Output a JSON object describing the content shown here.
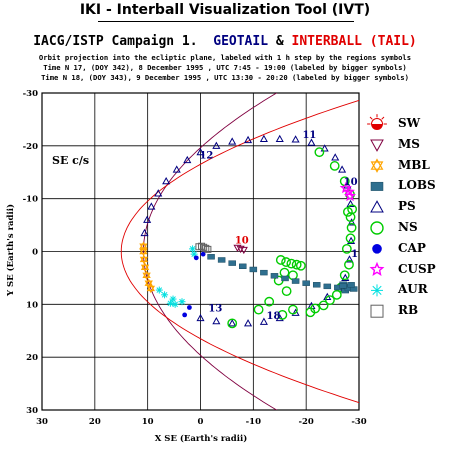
{
  "header": {
    "app_title": "IKI - Interball Visualization Tool (IVT)",
    "campaign_prefix": "IACG/ISTP Campaign 1.",
    "spacecraft_1": "GEOTAIL",
    "amp": "&",
    "spacecraft_2": "INTERBALL (TAIL)",
    "line1": "Orbit projection into the ecliptic plane, labeled with 1 h step by the regions symbols",
    "line2": "Time N 17, (DOY 342), 8 December 1995 , UTC 7:45 - 19:00 (labeled by bigger symbols)",
    "line3": "Time N 18, (DOY 343), 9 December 1995 , UTC 13:30 - 20:20 (labeled by bigger symbols)"
  },
  "colors": {
    "geotail": "#000080",
    "interball": "#e00000",
    "magnetopause": "#800040",
    "bow_shock": "#e00000",
    "SW": "#e00000",
    "MS": "#800040",
    "MBL": "#ffa500",
    "LOBS": "#2f6f8f",
    "PS": "#000080",
    "NS": "#00cc00",
    "CAP": "#0000e0",
    "CUSP": "#ff00ff",
    "AUR": "#00e0e0",
    "RB": "#606060"
  },
  "chart_data": {
    "type": "scatter",
    "xlabel": "X SE (Earth's radii)",
    "ylabel": "Y SE (Earth's radii)",
    "frame_label": "SE c/s",
    "xlim": [
      30,
      -30
    ],
    "ylim": [
      -30,
      30
    ],
    "x_ticks": [
      "30",
      "20",
      "10",
      "0",
      "-10",
      "-20",
      "-30"
    ],
    "y_ticks": [
      "-30",
      "-20",
      "-10",
      "0",
      "10",
      "20",
      "30"
    ],
    "grid": true,
    "legend": [
      {
        "key": "SW",
        "label": "SW"
      },
      {
        "key": "MS",
        "label": "MS"
      },
      {
        "key": "MBL",
        "label": "MBL"
      },
      {
        "key": "LOBS",
        "label": "LOBS"
      },
      {
        "key": "PS",
        "label": "PS"
      },
      {
        "key": "NS",
        "label": "NS"
      },
      {
        "key": "CAP",
        "label": "CAP"
      },
      {
        "key": "CUSP",
        "label": "CUSP"
      },
      {
        "key": "AUR",
        "label": "AUR"
      },
      {
        "key": "RB",
        "label": "RB"
      }
    ],
    "hour_labels": [
      {
        "text": "11",
        "x": -19.3,
        "y": -21.5,
        "sc": "geotail"
      },
      {
        "text": "12",
        "x": 0.2,
        "y": -17.6,
        "sc": "geotail"
      },
      {
        "text": "10",
        "x": -27.1,
        "y": -12.6,
        "sc": "geotail"
      },
      {
        "text": "10",
        "x": -6.5,
        "y": -1.5,
        "sc": "interball"
      },
      {
        "text": "1",
        "x": -28.5,
        "y": 1.0,
        "sc": "geotail"
      },
      {
        "text": "13",
        "x": -1.5,
        "y": 11.4,
        "sc": "geotail"
      },
      {
        "text": "18",
        "x": -12.5,
        "y": 12.8,
        "sc": "geotail"
      }
    ],
    "series": [
      {
        "sc": "geotail",
        "region": "PS",
        "points": [
          [
            -12,
            -21.3
          ],
          [
            -9,
            -21.1
          ],
          [
            -6,
            -20.8
          ],
          [
            -3,
            -20
          ],
          [
            0,
            -18.8
          ],
          [
            2.5,
            -17.3
          ],
          [
            4.5,
            -15.5
          ],
          [
            6.5,
            -13.3
          ],
          [
            8,
            -11
          ],
          [
            9.3,
            -8.5
          ],
          [
            10.1,
            -6
          ],
          [
            10.6,
            -3.5
          ],
          [
            -15,
            -21.3
          ],
          [
            -18,
            -21.2
          ],
          [
            -21,
            -20.6
          ],
          [
            -23.5,
            -19.5
          ],
          [
            -25.5,
            -17.8
          ],
          [
            -26.8,
            -15.5
          ],
          [
            -27.8,
            -12.5
          ],
          [
            -28.4,
            -9
          ],
          [
            -28.6,
            -5.5
          ],
          [
            -28.5,
            -2
          ],
          [
            -28.2,
            1.5
          ],
          [
            -27.4,
            5
          ],
          [
            -26.2,
            7
          ],
          [
            -24,
            8.6
          ],
          [
            -21,
            10.3
          ],
          [
            -18,
            11.6
          ],
          [
            -15,
            12.6
          ],
          [
            -12,
            13.3
          ],
          [
            -9,
            13.6
          ],
          [
            -6,
            13.6
          ],
          [
            -3,
            13.2
          ],
          [
            0,
            12.6
          ]
        ]
      },
      {
        "sc": "geotail",
        "region": "MBL",
        "points": [
          [
            10.8,
            -1
          ],
          [
            10.8,
            0
          ],
          [
            10.7,
            1.5
          ],
          [
            10.5,
            3
          ],
          [
            10.2,
            4.5
          ],
          [
            9.8,
            6
          ],
          [
            9.4,
            7
          ]
        ]
      },
      {
        "sc": "geotail",
        "region": "NS",
        "points": [
          [
            -22.5,
            -18.8
          ],
          [
            -25.4,
            -16.2
          ],
          [
            -27.3,
            -13.3
          ],
          [
            -28.3,
            -10.8
          ],
          [
            -28.7,
            -8
          ],
          [
            -28.4,
            -6.5
          ],
          [
            -27.9,
            -7.5
          ],
          [
            -28.6,
            -4.5
          ],
          [
            -28.4,
            -2.5
          ],
          [
            -27.7,
            -0.5
          ],
          [
            -28.1,
            2.5
          ],
          [
            -27.3,
            4.5
          ],
          [
            -26.6,
            6.8
          ],
          [
            -25.8,
            8.2
          ],
          [
            -24.5,
            9.2
          ],
          [
            -23.3,
            10.2
          ],
          [
            -21.7,
            10.8
          ],
          [
            -20.8,
            11.5
          ],
          [
            -17.5,
            11
          ],
          [
            -15.5,
            12
          ],
          [
            -15.2,
            1.6
          ],
          [
            -16.2,
            2.0
          ],
          [
            -17.2,
            2.3
          ],
          [
            -18.2,
            2.5
          ],
          [
            -19,
            2.7
          ],
          [
            -14.8,
            5.5
          ],
          [
            -15.9,
            4.0
          ],
          [
            -17.5,
            4.5
          ],
          [
            -16.3,
            7.5
          ],
          [
            -13,
            9.5
          ],
          [
            -11,
            11.0
          ],
          [
            -6,
            13.6
          ]
        ]
      },
      {
        "sc": "geotail",
        "region": "LOBS",
        "points": [
          [
            -27,
            6.2
          ],
          [
            -27.2,
            6.8
          ],
          [
            -27.4,
            7.4
          ],
          [
            -27.6,
            6.6
          ]
        ]
      },
      {
        "sc": "geotail",
        "region": "CUSP",
        "points": [
          [
            -27.5,
            -12
          ],
          [
            -28.1,
            -11.3
          ],
          [
            -28.3,
            -10.5
          ]
        ]
      },
      {
        "sc": "interball",
        "region": "LOBS",
        "points": [
          [
            -6,
            2.2
          ],
          [
            -8,
            2.8
          ],
          [
            -10,
            3.4
          ],
          [
            -12,
            4.0
          ],
          [
            -14,
            4.6
          ],
          [
            -16,
            5.1
          ],
          [
            -18,
            5.6
          ],
          [
            -20,
            6.0
          ],
          [
            -22,
            6.3
          ],
          [
            -24,
            6.6
          ],
          [
            -26,
            6.8
          ],
          [
            -28,
            7.0
          ],
          [
            -29,
            7.1
          ],
          [
            -4,
            1.6
          ],
          [
            -2,
            1.0
          ],
          [
            -27,
            6.5
          ],
          [
            -28.5,
            6.3
          ]
        ]
      },
      {
        "sc": "interball",
        "region": "AUR",
        "points": [
          [
            1.5,
            -0.5
          ],
          [
            1.2,
            0.5
          ],
          [
            3.5,
            9.5
          ],
          [
            4.8,
            10.0
          ],
          [
            5.2,
            9.0
          ],
          [
            5.7,
            9.8
          ],
          [
            6.8,
            8.2
          ],
          [
            7.8,
            7.3
          ]
        ]
      },
      {
        "sc": "interball",
        "region": "CAP",
        "points": [
          [
            -0.5,
            0.5
          ],
          [
            0.8,
            1.2
          ],
          [
            2.1,
            10.6
          ],
          [
            3.0,
            12.0
          ]
        ]
      },
      {
        "sc": "interball",
        "region": "RB",
        "points": [
          [
            -0.2,
            -1.0
          ],
          [
            -0.6,
            -0.8
          ],
          [
            -1.0,
            -0.6
          ],
          [
            0.3,
            -0.9
          ],
          [
            -1.4,
            -0.4
          ]
        ]
      },
      {
        "sc": "interball",
        "region": "MS",
        "points": [
          [
            -7.0,
            -0.7
          ],
          [
            -7.6,
            -0.5
          ],
          [
            -8.2,
            -0.3
          ]
        ]
      }
    ]
  }
}
